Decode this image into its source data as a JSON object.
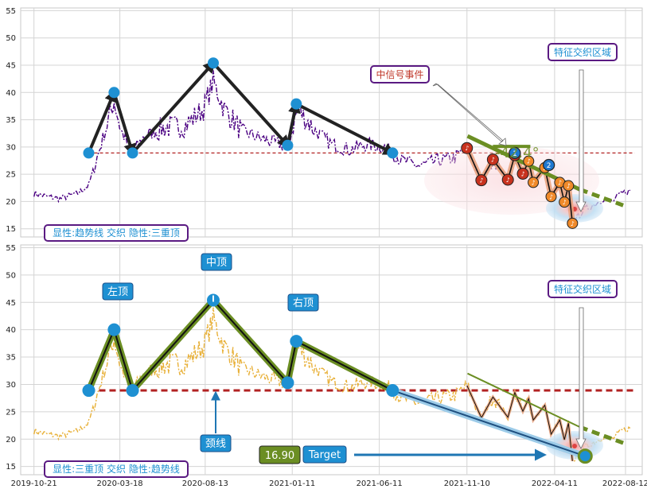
{
  "chart_data": [
    {
      "type": "line",
      "panel": "top",
      "ylim": [
        13.5,
        55.5
      ],
      "yticks": [
        15,
        20,
        25,
        30,
        35,
        40,
        45,
        50,
        55
      ],
      "grid": true,
      "neckline": 28.9,
      "legend_text": "显性:趋势线 交织 隐性:三重顶",
      "annotations": {
        "signal_event": "中信号事件",
        "zone_label": "特征交织区域",
        "angle_label": "-42.4°",
        "marker_numbers": [
          "1",
          "2"
        ]
      },
      "pattern_points": [
        {
          "x": "2020-01-24",
          "y": 28.9
        },
        {
          "x": "2020-03-08",
          "y": 40.0
        },
        {
          "x": "2020-04-09",
          "y": 28.9
        },
        {
          "x": "2020-08-27",
          "y": 45.4
        },
        {
          "x": "2021-01-03",
          "y": 30.3
        },
        {
          "x": "2021-01-18",
          "y": 37.9
        },
        {
          "x": "2021-07-04",
          "y": 28.9
        }
      ],
      "trend_line": [
        {
          "x": "2021-11-11",
          "y": 32.0
        },
        {
          "x": "2022-08-08",
          "y": 19.3
        }
      ]
    },
    {
      "type": "line",
      "panel": "bottom",
      "ylim": [
        13.5,
        55.5
      ],
      "yticks": [
        15,
        20,
        25,
        30,
        35,
        40,
        45,
        50,
        55
      ],
      "grid": true,
      "neckline": 28.9,
      "legend_text": "显性:三重顶 交织 隐性:趋势线",
      "labels": {
        "left_top": "左顶",
        "middle_top": "中顶",
        "right_top": "右顶",
        "neckline": "颈线",
        "zone_label": "特征交织区域",
        "target_value": "16.90",
        "target_label": "Target"
      },
      "target_price": 16.9,
      "pattern_points": [
        {
          "x": "2020-01-24",
          "y": 28.9
        },
        {
          "x": "2020-03-08",
          "y": 40.0
        },
        {
          "x": "2020-04-09",
          "y": 28.9
        },
        {
          "x": "2020-08-27",
          "y": 45.4
        },
        {
          "x": "2021-01-03",
          "y": 30.3
        },
        {
          "x": "2021-01-18",
          "y": 37.9
        },
        {
          "x": "2021-07-04",
          "y": 28.9
        },
        {
          "x": "2022-06-03",
          "y": 16.9
        }
      ],
      "trend_line": [
        {
          "x": "2021-11-11",
          "y": 32.0
        },
        {
          "x": "2022-08-08",
          "y": 19.3
        }
      ]
    }
  ],
  "x_ticks": [
    "2019-10-21",
    "2020-03-18",
    "2020-08-13",
    "2021-01-11",
    "2021-06-11",
    "2021-11-10",
    "2022-04-11",
    "2022-08-12"
  ],
  "x_range": [
    "2019-09-28",
    "2022-09-10"
  ],
  "colors": {
    "price_top": "#4b0082",
    "price_bottom": "#e8b13a",
    "pattern_line": "#222222",
    "pattern_green": "#6b8e23",
    "neckline": "#b22222",
    "marker_blue": "#1e90d2",
    "label_bg": "#1e90d2",
    "target_line": "#1f77b4",
    "trend_green": "#6b8e23",
    "ellipse_pink": "#f4c2c8",
    "ellipse_blue": "#a9d3f0",
    "box_border": "#5a1a82"
  },
  "price_series": {
    "keypoints": [
      [
        "2019-10-21",
        21.5
      ],
      [
        "2019-11-10",
        21.0
      ],
      [
        "2019-12-05",
        20.5
      ],
      [
        "2020-01-05",
        21.5
      ],
      [
        "2020-01-24",
        23.0
      ],
      [
        "2020-02-10",
        28.9
      ],
      [
        "2020-03-08",
        38.5
      ],
      [
        "2020-03-20",
        33.0
      ],
      [
        "2020-04-09",
        29.0
      ],
      [
        "2020-04-30",
        32.0
      ],
      [
        "2020-06-01",
        33.5
      ],
      [
        "2020-07-10",
        34.0
      ],
      [
        "2020-08-10",
        37.0
      ],
      [
        "2020-08-27",
        42.0
      ],
      [
        "2020-09-15",
        37.0
      ],
      [
        "2020-10-15",
        33.0
      ],
      [
        "2020-11-20",
        31.5
      ],
      [
        "2020-12-20",
        30.5
      ],
      [
        "2021-01-03",
        30.0
      ],
      [
        "2021-01-20",
        37.0
      ],
      [
        "2021-02-20",
        33.0
      ],
      [
        "2021-03-20",
        30.5
      ],
      [
        "2021-04-20",
        29.5
      ],
      [
        "2021-05-20",
        30.5
      ],
      [
        "2021-06-20",
        30.0
      ],
      [
        "2021-07-04",
        28.9
      ],
      [
        "2021-07-20",
        27.5
      ],
      [
        "2021-08-20",
        26.5
      ],
      [
        "2021-09-20",
        27.5
      ],
      [
        "2021-10-20",
        28.0
      ]
    ],
    "tail": [
      [
        "2022-06-01",
        18.5
      ],
      [
        "2022-06-20",
        19.5
      ],
      [
        "2022-07-05",
        20.5
      ],
      [
        "2022-07-20",
        20.0
      ],
      [
        "2022-08-05",
        21.5
      ],
      [
        "2022-08-20",
        22.0
      ]
    ]
  },
  "swing_points": [
    [
      "2021-11-10",
      29.8
    ],
    [
      "2021-12-05",
      23.9
    ],
    [
      "2021-12-25",
      27.7
    ],
    [
      "2022-01-20",
      24.0
    ],
    [
      "2022-02-01",
      28.5
    ],
    [
      "2022-02-15",
      25.1
    ],
    [
      "2022-02-25",
      27.4
    ],
    [
      "2022-03-05",
      23.5
    ],
    [
      "2022-03-25",
      26.2
    ],
    [
      "2022-04-05",
      20.9
    ],
    [
      "2022-04-20",
      23.5
    ],
    [
      "2022-04-28",
      19.9
    ],
    [
      "2022-05-05",
      22.9
    ],
    [
      "2022-05-12",
      16.0
    ]
  ]
}
